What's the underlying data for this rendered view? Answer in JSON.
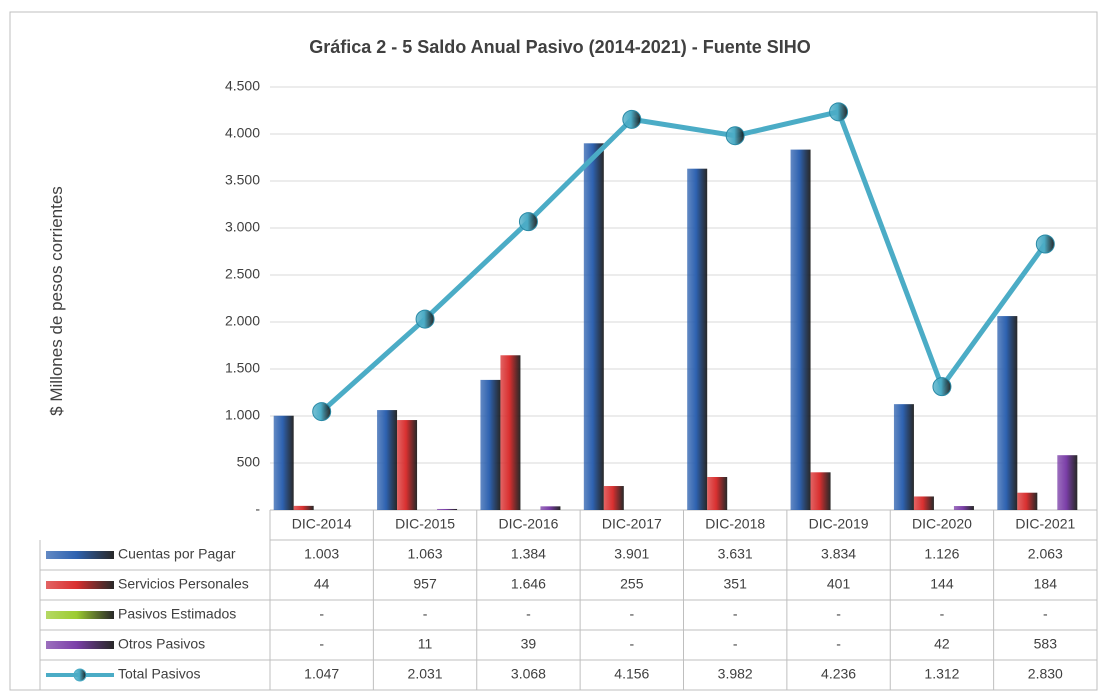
{
  "chart_data": {
    "type": "bar",
    "title": "Gráfica 2 - 5 Saldo Anual Pasivo (2014-2021) - Fuente SIHO",
    "y_label": "$ Millones de pesos corrientes",
    "categories": [
      "DIC-2014",
      "DIC-2015",
      "DIC-2016",
      "DIC-2017",
      "DIC-2018",
      "DIC-2019",
      "DIC-2020",
      "DIC-2021"
    ],
    "series": [
      {
        "name": "Cuentas por Pagar",
        "color": "#2e62b0",
        "values": [
          1003,
          1063,
          1384,
          3901,
          3631,
          3834,
          1126,
          2063
        ],
        "value_labels": [
          "1.003",
          "1.063",
          "1.384",
          "3.901",
          "3.631",
          "3.834",
          "1.126",
          "2.063"
        ]
      },
      {
        "name": "Servicios Personales",
        "color": "#d93030",
        "values": [
          44,
          957,
          1646,
          255,
          351,
          401,
          144,
          184
        ],
        "value_labels": [
          "44",
          "957",
          "1.646",
          "255",
          "351",
          "401",
          "144",
          "184"
        ]
      },
      {
        "name": "Pasivos Estimados",
        "color": "#9ccc30",
        "values": [
          0,
          0,
          0,
          0,
          0,
          0,
          0,
          0
        ],
        "value_labels": [
          "-",
          "-",
          "-",
          "-",
          "-",
          "-",
          "-",
          "-"
        ]
      },
      {
        "name": "Otros Pasivos",
        "color": "#7b3fa8",
        "values": [
          0,
          11,
          39,
          0,
          0,
          0,
          42,
          583
        ],
        "value_labels": [
          "-",
          "11",
          "39",
          "-",
          "-",
          "-",
          "42",
          "583"
        ]
      },
      {
        "name": "Total Pasivos",
        "type": "line",
        "color": "#4bacc6",
        "values": [
          1047,
          2031,
          3068,
          4156,
          3982,
          4236,
          1312,
          2830
        ],
        "value_labels": [
          "1.047",
          "2.031",
          "3.068",
          "4.156",
          "3.982",
          "4.236",
          "1.312",
          "2.830"
        ]
      }
    ],
    "ylim": [
      0,
      4500
    ],
    "yticks": [
      {
        "value": 0,
        "label": "-"
      },
      500,
      {
        "value": 1000,
        "label": "1.000"
      },
      {
        "value": 1500,
        "label": "1.500"
      },
      {
        "value": 2000,
        "label": "2.000"
      },
      {
        "value": 2500,
        "label": "2.500"
      },
      {
        "value": 3000,
        "label": "3.000"
      },
      {
        "value": 3500,
        "label": "3.500"
      },
      {
        "value": 4000,
        "label": "4.000"
      },
      {
        "value": 4500,
        "label": "4.500"
      }
    ],
    "grid": true
  }
}
